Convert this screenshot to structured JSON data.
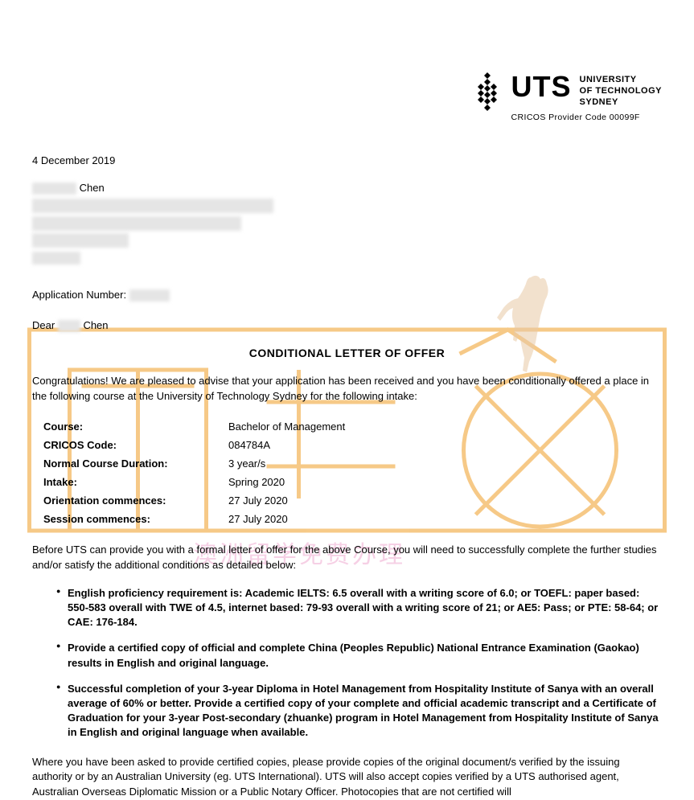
{
  "logo": {
    "uts": "UTS",
    "line1": "UNIVERSITY",
    "line2": "OF TECHNOLOGY",
    "line3": "SYDNEY",
    "cricos": "CRICOS Provider Code 00099F",
    "icon_color": "#000000"
  },
  "date": "4 December 2019",
  "recipient_name_suffix": "Chen",
  "app_label": "Application Number:",
  "greeting_prefix": "Dear",
  "greeting_name": "Chen",
  "title": "CONDITIONAL LETTER OF OFFER",
  "intro": "Congratulations! We are pleased to advise that your application has been received and you have been conditionally offered a place in the following course at the University of Technology Sydney for the following intake:",
  "info": [
    {
      "label": "Course:",
      "value": "Bachelor of Management"
    },
    {
      "label": "CRICOS Code:",
      "value": "084784A"
    },
    {
      "label": "Normal Course Duration:",
      "value": "3 year/s"
    },
    {
      "label": "Intake:",
      "value": "Spring 2020"
    },
    {
      "label": "Orientation commences:",
      "value": "27 July 2020"
    },
    {
      "label": "Session commences:",
      "value": "27 July 2020"
    }
  ],
  "before_text": "Before UTS can provide you with a formal letter of offer for the above Course, you will need to successfully complete the further studies and/or satisfy the additional conditions as detailed below:",
  "bullets": [
    "English proficiency requirement is: Academic IELTS: 6.5 overall with a writing score of 6.0; or TOEFL: paper based: 550-583 overall with TWE of 4.5, internet based: 79-93 overall with a writing score of 21; or AE5: Pass; or PTE: 58-64; or CAE: 176-184.",
    "Provide a certified copy of official and complete China (Peoples Republic) National Entrance Examination (Gaokao) results in English and original language.",
    "Successful completion of your 3-year Diploma in Hotel Management from Hospitality Institute of Sanya with an overall average of 60% or better. Provide a certified copy of your complete and official academic transcript and a Certificate of Graduation for your 3-year Post-secondary (zhuanke) program in Hotel Management from Hospitality Institute of Sanya in English and original language when available."
  ],
  "closing": "Where you have been asked to provide certified copies, please provide copies of the original document/s verified by the issuing authority or by an Australian University (eg. UTS International). UTS will also accept copies verified by a UTS authorised agent, Australian Overseas Diplomatic Mission or a Public Notary Officer. Photocopies that are not certified will",
  "watermark": {
    "stroke": "#f4b860",
    "pink_text": "澳洲留学免费办理",
    "pink_color": "rgba(228,120,180,0.35)",
    "kangaroo_fill": "#e8c9a6"
  }
}
